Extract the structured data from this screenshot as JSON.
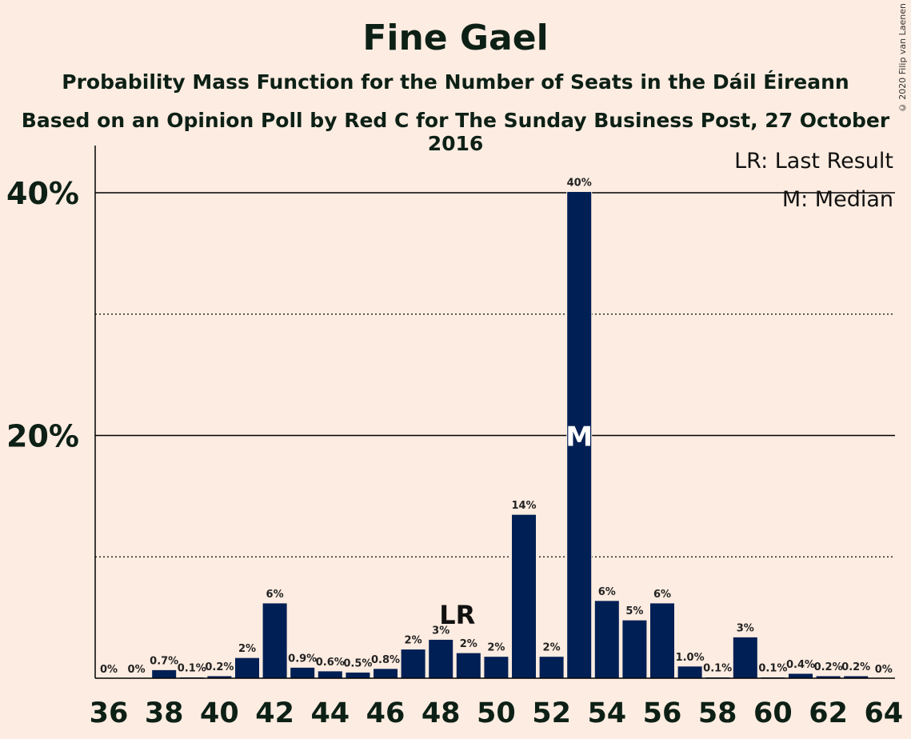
{
  "header": {
    "title": "Fine Gael",
    "subtitle": "Probability Mass Function for the Number of Seats in the Dáil Éireann",
    "subtitle2": "Based on an Opinion Poll by Red C for The Sunday Business Post, 27 October 2016",
    "copyright": "© 2020 Filip van Laenen"
  },
  "legend": {
    "lr": "LR: Last Result",
    "m": "M: Median",
    "position": "top-right"
  },
  "colors": {
    "bar": "#001f54",
    "background": "#fdece1",
    "text": "#0d2016"
  },
  "chart_data": {
    "type": "bar",
    "x": [
      36,
      37,
      38,
      39,
      40,
      41,
      42,
      43,
      44,
      45,
      46,
      47,
      48,
      49,
      50,
      51,
      52,
      53,
      54,
      55,
      56,
      57,
      58,
      59,
      60,
      61,
      62,
      63,
      64
    ],
    "values": [
      0,
      0,
      0.7,
      0.1,
      0.2,
      1.7,
      6.2,
      0.9,
      0.6,
      0.5,
      0.8,
      2.4,
      3.2,
      2.1,
      1.8,
      13.5,
      1.8,
      40.1,
      6.4,
      4.8,
      6.2,
      1.0,
      0.1,
      3.4,
      0.1,
      0.4,
      0.2,
      0.2,
      0
    ],
    "labels": [
      "0%",
      "0%",
      "0.7%",
      "0.1%",
      "0.2%",
      "2%",
      "6%",
      "0.9%",
      "0.6%",
      "0.5%",
      "0.8%",
      "2%",
      "3%",
      "2%",
      "2%",
      "14%",
      "2%",
      "40%",
      "6%",
      "5%",
      "6%",
      "1.0%",
      "0.1%",
      "3%",
      "0.1%",
      "0.4%",
      "0.2%",
      "0.2%",
      "0%"
    ],
    "xticks": [
      36,
      38,
      40,
      42,
      44,
      46,
      48,
      50,
      52,
      54,
      56,
      58,
      60,
      62,
      64
    ],
    "yticks": [
      {
        "value": 20,
        "label": "20%"
      },
      {
        "value": 40,
        "label": "40%"
      }
    ],
    "dotted_gridlines": [
      10,
      30
    ],
    "ylim": [
      0,
      44
    ],
    "last_result": 49,
    "last_result_marker": "LR",
    "median": 53,
    "median_marker": "M"
  }
}
